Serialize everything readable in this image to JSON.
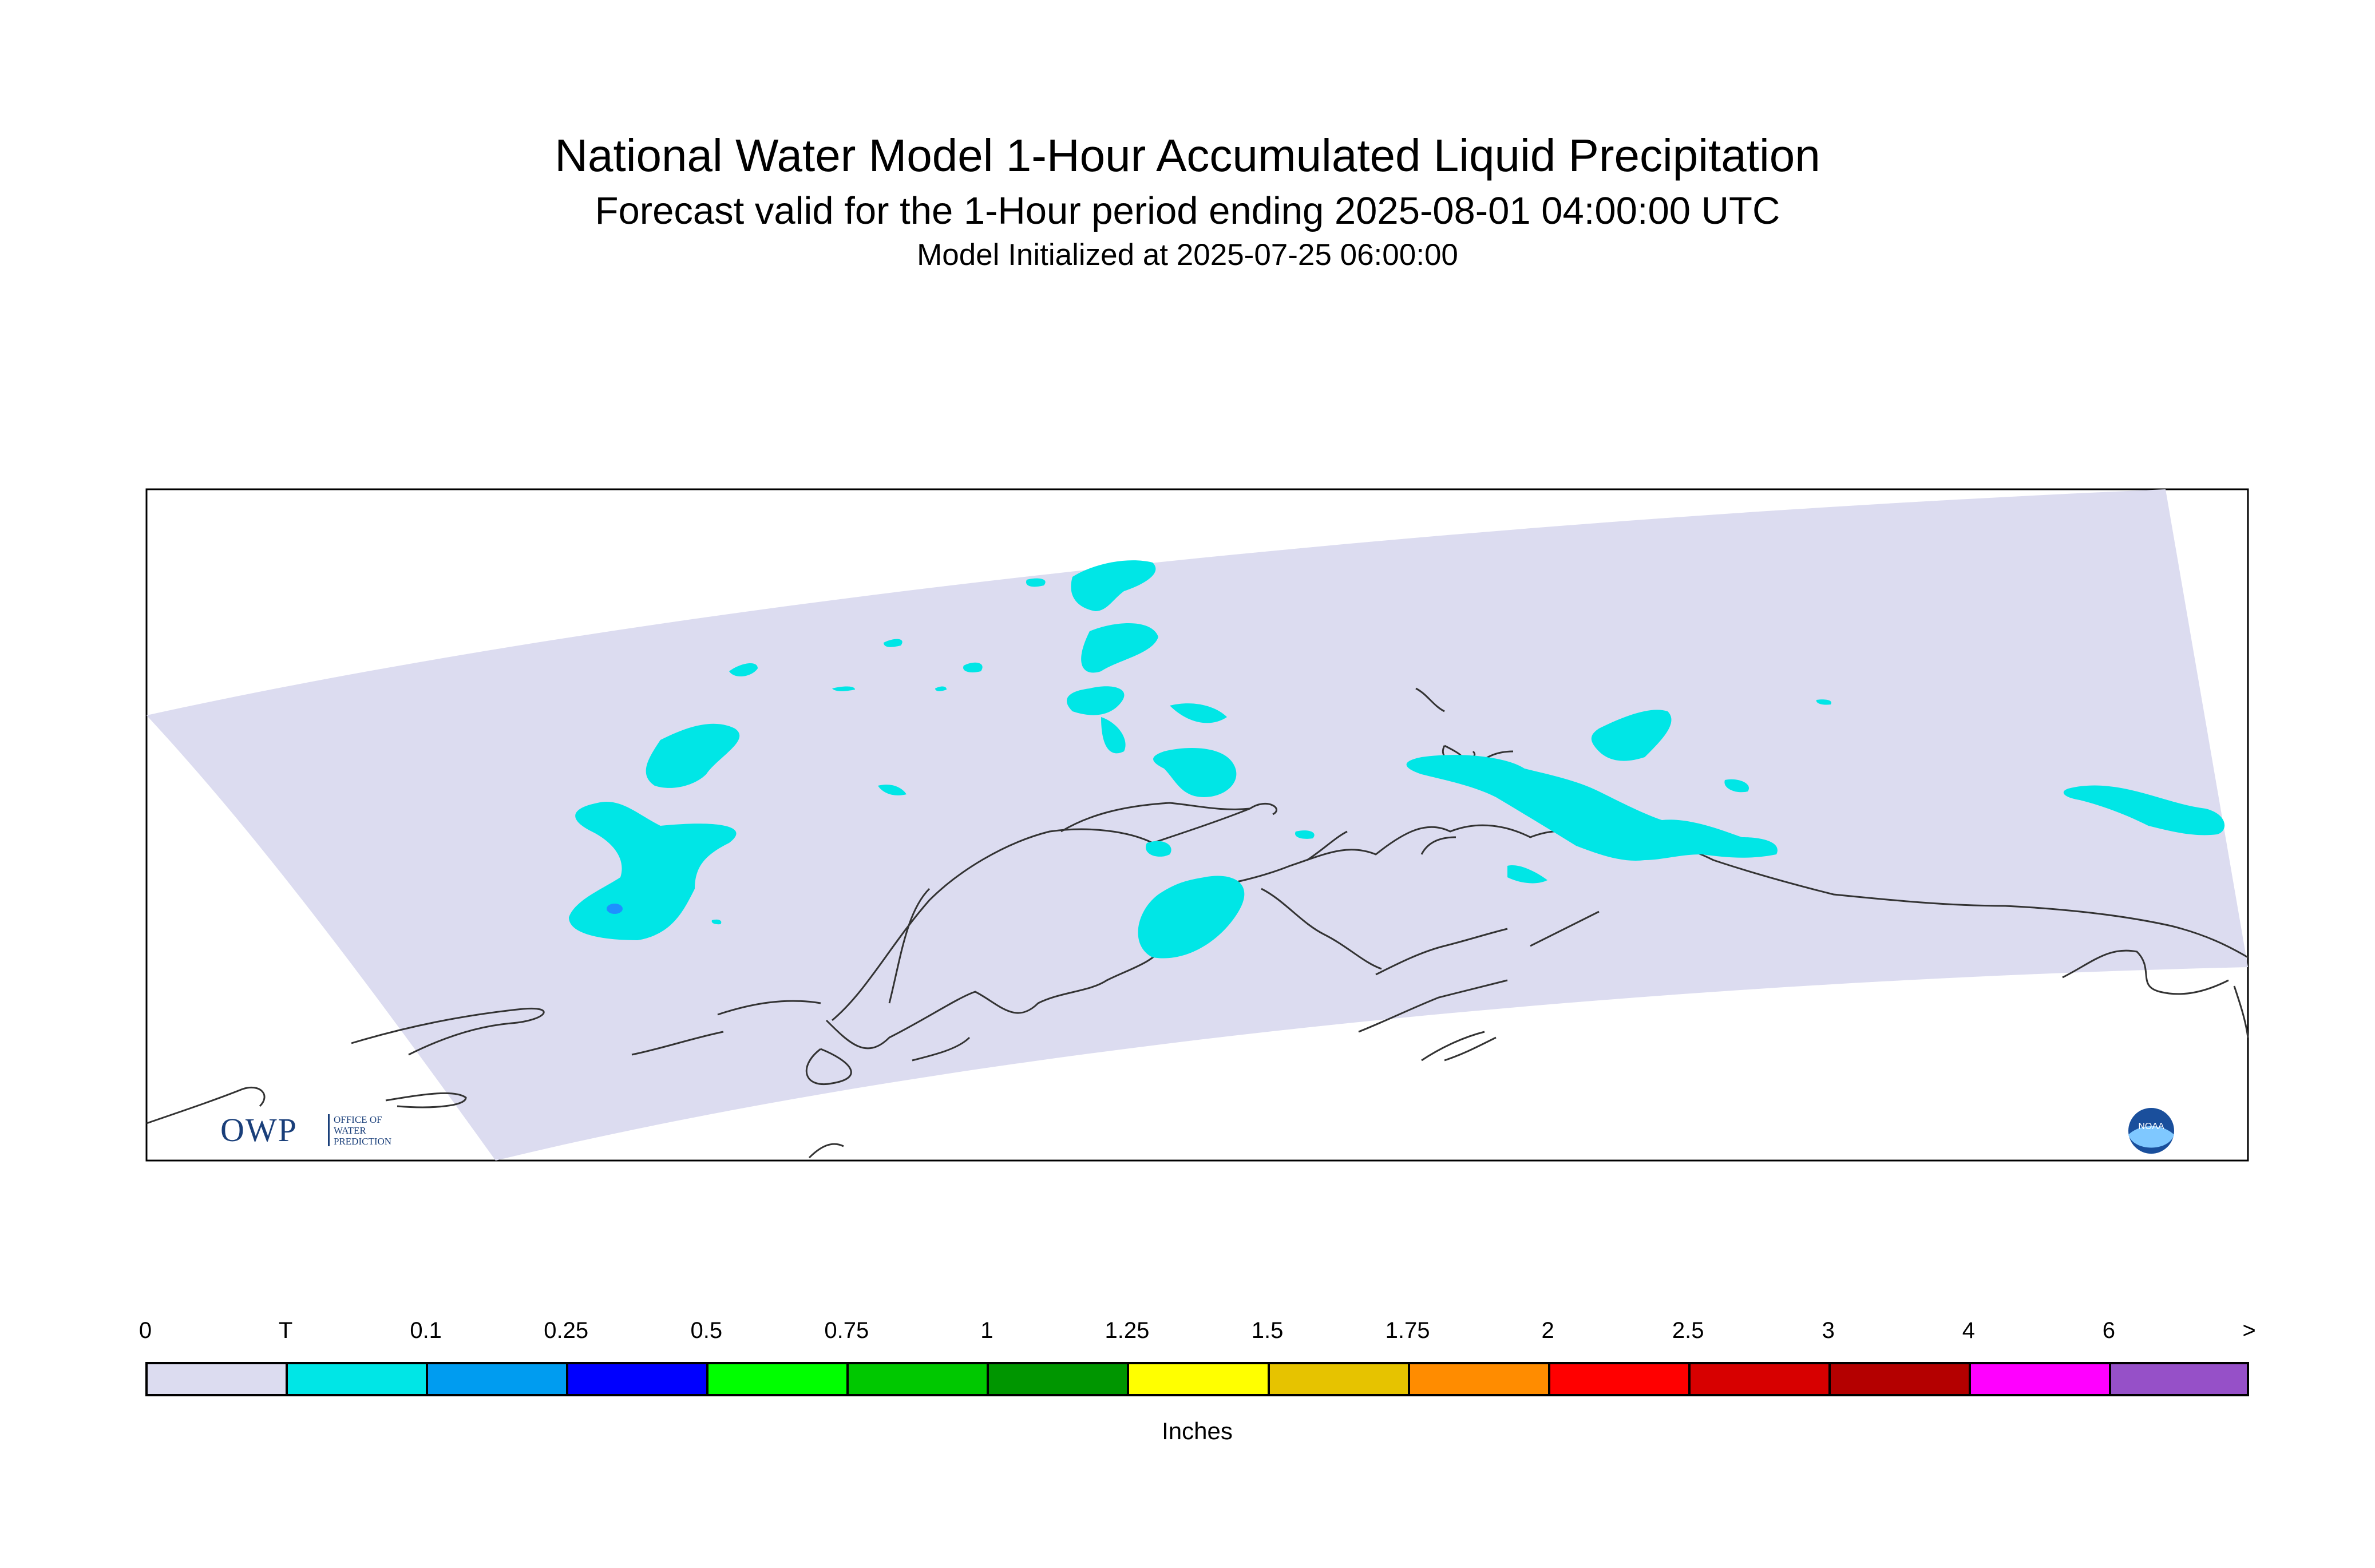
{
  "header": {
    "title": "National Water Model 1-Hour Accumulated Liquid Precipitation",
    "subtitle": "Forecast valid for the 1-Hour period ending 2025-08-01 04:00:00 UTC",
    "init": "Model Initialized at 2025-07-25 06:00:00"
  },
  "logos": {
    "owp_letters": "OWP",
    "owp_line1": "OFFICE OF",
    "owp_line2": "WATER",
    "owp_line3": "PREDICTION",
    "noaa_text": "NOAA"
  },
  "colors": {
    "domain": "#dcdcf0",
    "coast": "#333333",
    "precip_trace": "#00e6e6",
    "precip_low": "#1e90ff"
  },
  "legend": {
    "units": "Inches",
    "ticks": [
      "0",
      "T",
      "0.1",
      "0.25",
      "0.5",
      "0.75",
      "1",
      "1.25",
      "1.5",
      "1.75",
      "2",
      "2.5",
      "3",
      "4",
      "6",
      ">"
    ],
    "colors": [
      "#dcdcf0",
      "#00e6e6",
      "#009cf0",
      "#0000ff",
      "#00ff00",
      "#00c800",
      "#009600",
      "#ffff00",
      "#e6c300",
      "#ff8c00",
      "#ff0000",
      "#d70000",
      "#b40000",
      "#ff00ff",
      "#9650c8"
    ]
  }
}
